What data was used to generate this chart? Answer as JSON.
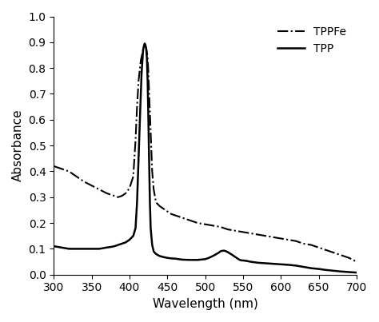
{
  "title": "",
  "xlabel": "Wavelength (nm)",
  "ylabel": "Absorbance",
  "xlim": [
    300,
    700
  ],
  "ylim": [
    0,
    1.0
  ],
  "xticks": [
    300,
    350,
    400,
    450,
    500,
    550,
    600,
    650,
    700
  ],
  "yticks": [
    0,
    0.1,
    0.2,
    0.3,
    0.4,
    0.5,
    0.6,
    0.7,
    0.8,
    0.9,
    1.0
  ],
  "background_color": "#ffffff",
  "legend_labels": [
    "TPPFe",
    "TPP"
  ],
  "legend_styles": [
    "dashdot",
    "solid"
  ],
  "TPPFe_x": [
    300,
    310,
    320,
    330,
    340,
    350,
    360,
    370,
    375,
    380,
    385,
    390,
    395,
    400,
    405,
    408,
    410,
    412,
    415,
    418,
    420,
    422,
    424,
    425,
    426,
    428,
    430,
    432,
    435,
    440,
    445,
    450,
    455,
    460,
    465,
    470,
    475,
    480,
    490,
    500,
    510,
    520,
    530,
    540,
    550,
    560,
    570,
    580,
    590,
    600,
    610,
    620,
    630,
    640,
    650,
    660,
    670,
    680,
    690,
    700
  ],
  "TPPFe_y": [
    0.42,
    0.41,
    0.4,
    0.38,
    0.36,
    0.345,
    0.33,
    0.315,
    0.31,
    0.305,
    0.3,
    0.305,
    0.315,
    0.335,
    0.38,
    0.52,
    0.65,
    0.75,
    0.83,
    0.87,
    0.885,
    0.88,
    0.84,
    0.78,
    0.7,
    0.55,
    0.4,
    0.33,
    0.28,
    0.265,
    0.255,
    0.245,
    0.235,
    0.23,
    0.225,
    0.22,
    0.215,
    0.21,
    0.2,
    0.195,
    0.19,
    0.185,
    0.175,
    0.17,
    0.165,
    0.16,
    0.155,
    0.15,
    0.145,
    0.14,
    0.135,
    0.13,
    0.12,
    0.115,
    0.105,
    0.095,
    0.085,
    0.075,
    0.065,
    0.05
  ],
  "TPP_x": [
    300,
    310,
    320,
    330,
    340,
    350,
    360,
    370,
    375,
    380,
    385,
    390,
    395,
    400,
    405,
    408,
    410,
    412,
    414,
    416,
    418,
    419,
    420,
    421,
    422,
    423,
    424,
    425,
    426,
    427,
    428,
    430,
    432,
    435,
    438,
    440,
    445,
    450,
    455,
    460,
    465,
    470,
    480,
    490,
    500,
    505,
    510,
    515,
    518,
    520,
    522,
    525,
    528,
    530,
    535,
    540,
    545,
    548,
    550,
    555,
    560,
    565,
    570,
    575,
    580,
    585,
    590,
    595,
    600,
    610,
    620,
    630,
    640,
    650,
    660,
    670,
    680,
    690,
    700
  ],
  "TPP_y": [
    0.11,
    0.105,
    0.1,
    0.1,
    0.1,
    0.1,
    0.1,
    0.105,
    0.107,
    0.11,
    0.115,
    0.12,
    0.125,
    0.135,
    0.15,
    0.18,
    0.28,
    0.45,
    0.62,
    0.78,
    0.87,
    0.885,
    0.895,
    0.89,
    0.875,
    0.84,
    0.75,
    0.6,
    0.43,
    0.28,
    0.18,
    0.115,
    0.09,
    0.08,
    0.075,
    0.072,
    0.068,
    0.065,
    0.063,
    0.062,
    0.06,
    0.058,
    0.057,
    0.057,
    0.06,
    0.065,
    0.072,
    0.08,
    0.085,
    0.09,
    0.092,
    0.093,
    0.09,
    0.087,
    0.078,
    0.068,
    0.058,
    0.055,
    0.055,
    0.053,
    0.05,
    0.048,
    0.046,
    0.045,
    0.044,
    0.043,
    0.042,
    0.041,
    0.04,
    0.038,
    0.035,
    0.03,
    0.025,
    0.022,
    0.018,
    0.015,
    0.012,
    0.01,
    0.008
  ],
  "line_color": "#000000",
  "linewidth": 1.5,
  "font_size": 11,
  "tick_font_size": 10,
  "legend_font_size": 10
}
